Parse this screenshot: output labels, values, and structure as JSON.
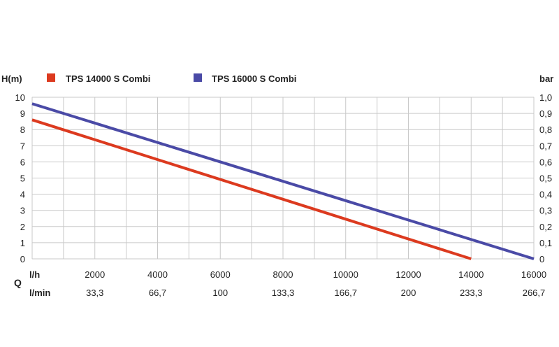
{
  "chart_data": {
    "type": "line",
    "y_left_label": "H(m)",
    "y_right_label": "bar",
    "x_label_q": "Q",
    "x_unit_lh": "l/h",
    "x_unit_lmin": "l/min",
    "xlim": [
      0,
      16000
    ],
    "ylim_left": [
      0,
      10
    ],
    "ylim_right": [
      0,
      1.0
    ],
    "y_left_ticks": [
      "0",
      "1",
      "2",
      "3",
      "4",
      "5",
      "6",
      "7",
      "8",
      "9",
      "10"
    ],
    "y_right_ticks": [
      "0",
      "0,1",
      "0,2",
      "0,3",
      "0,4",
      "0,5",
      "0,6",
      "0,7",
      "0,8",
      "0,9",
      "1,0"
    ],
    "x_ticks_lh": [
      {
        "value": 2000,
        "label": "2000"
      },
      {
        "value": 4000,
        "label": "4000"
      },
      {
        "value": 6000,
        "label": "6000"
      },
      {
        "value": 8000,
        "label": "8000"
      },
      {
        "value": 10000,
        "label": "10000"
      },
      {
        "value": 12000,
        "label": "12000"
      },
      {
        "value": 14000,
        "label": "14000"
      },
      {
        "value": 16000,
        "label": "16000"
      }
    ],
    "x_ticks_lmin": [
      {
        "value": 2000,
        "label": "33,3"
      },
      {
        "value": 4000,
        "label": "66,7"
      },
      {
        "value": 6000,
        "label": "100"
      },
      {
        "value": 8000,
        "label": "133,3"
      },
      {
        "value": 10000,
        "label": "166,7"
      },
      {
        "value": 12000,
        "label": "200"
      },
      {
        "value": 14000,
        "label": "233,3"
      },
      {
        "value": 16000,
        "label": "266,7"
      }
    ],
    "grid": true,
    "legend_position": "top",
    "series": [
      {
        "name": "TPS 14000 S Combi",
        "color": "#dc3a1f",
        "points": [
          [
            0,
            8.6
          ],
          [
            14000,
            0
          ]
        ]
      },
      {
        "name": "TPS 16000 S Combi",
        "color": "#4a4aa6",
        "points": [
          [
            0,
            9.6
          ],
          [
            16000,
            0
          ]
        ]
      }
    ]
  }
}
